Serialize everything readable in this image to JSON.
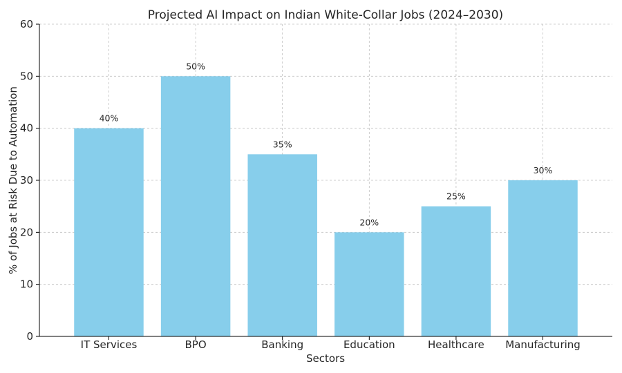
{
  "chart_data": {
    "type": "bar",
    "title": "Projected AI Impact on Indian White-Collar Jobs (2024–2030)",
    "xlabel": "Sectors",
    "ylabel": "% of Jobs at Risk Due to Automation",
    "categories": [
      "IT Services",
      "BPO",
      "Banking",
      "Education",
      "Healthcare",
      "Manufacturing"
    ],
    "values": [
      40,
      50,
      35,
      20,
      25,
      30
    ],
    "data_labels": [
      "40%",
      "50%",
      "35%",
      "20%",
      "25%",
      "30%"
    ],
    "ylim": [
      0,
      60
    ],
    "yticks": [
      0,
      10,
      20,
      30,
      40,
      50,
      60
    ],
    "grid": true,
    "bar_color": "#87CEEB"
  }
}
